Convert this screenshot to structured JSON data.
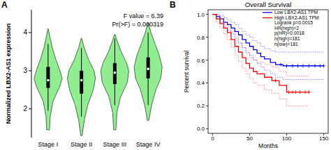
{
  "chart_data": [
    {
      "type": "violin",
      "panel_label": "A",
      "y_label": "Normalized LBX2-AS1 expression",
      "annotations": [
        "F value = 6.39",
        "Pr(>F) = 0.000319"
      ],
      "categories": [
        "Stage I",
        "Stage II",
        "Stage III",
        "Stage IV"
      ],
      "color": "#90ee90",
      "ylim": [
        1.25,
        4.6
      ],
      "yticks": [
        2,
        3,
        4
      ],
      "whisker_low": [
        1.95,
        1.8,
        2.1,
        2.1
      ],
      "q1": [
        2.55,
        2.4,
        2.65,
        2.8
      ],
      "median": [
        2.75,
        2.75,
        2.95,
        3.05
      ],
      "q3": [
        3.1,
        3.0,
        3.2,
        3.35
      ],
      "whisker_high": [
        3.7,
        3.6,
        3.85,
        4.0
      ],
      "density_y": [
        [
          1.45,
          1.8,
          2.2,
          2.6,
          2.8,
          3.0,
          3.3,
          3.6,
          3.9,
          4.1
        ],
        [
          1.3,
          1.7,
          2.1,
          2.5,
          2.8,
          3.0,
          3.3,
          3.6,
          3.85
        ],
        [
          1.45,
          1.9,
          2.3,
          2.7,
          3.0,
          3.2,
          3.5,
          3.8,
          3.95
        ],
        [
          1.7,
          2.1,
          2.5,
          2.8,
          3.1,
          3.4,
          3.7,
          4.0,
          4.25
        ]
      ],
      "density": [
        [
          0.1,
          0.15,
          0.35,
          0.85,
          1.0,
          0.85,
          0.55,
          0.3,
          0.12,
          0.02
        ],
        [
          0.05,
          0.2,
          0.45,
          0.85,
          1.0,
          0.9,
          0.5,
          0.2,
          0.02
        ],
        [
          0.08,
          0.15,
          0.4,
          0.9,
          1.0,
          0.85,
          0.45,
          0.15,
          0.03
        ],
        [
          0.05,
          0.25,
          0.55,
          0.9,
          1.0,
          0.8,
          0.5,
          0.2,
          0.02
        ]
      ]
    },
    {
      "type": "line",
      "panel_label": "B",
      "title": "Overall Survival",
      "x_label": "Months",
      "y_label": "Percent survival",
      "xlim": [
        -6,
        156
      ],
      "ylim": [
        -0.04,
        1.04
      ],
      "xticks": [
        0,
        50,
        100,
        150
      ],
      "yticks": [
        {
          "value": 0,
          "label": "0.0"
        },
        0.2,
        0.4,
        0.6,
        0.8,
        {
          "value": 1,
          "label": "1.0"
        }
      ],
      "legend": "top-right",
      "line_style": "step",
      "annotations": [
        "Logrank p=0.0015",
        "HR(high)=2",
        "p(HR)=0.0018",
        "n(high)=181",
        "n(low)=181"
      ],
      "series": [
        {
          "name": "Low LBX2-AS1 TPM",
          "color": "#0000ff",
          "x": [
            0,
            5,
            10,
            15,
            20,
            25,
            30,
            35,
            40,
            45,
            50,
            55,
            60,
            65,
            70,
            78,
            85,
            95,
            150
          ],
          "values": [
            1,
            0.98,
            0.96,
            0.93,
            0.91,
            0.88,
            0.85,
            0.82,
            0.78,
            0.75,
            0.72,
            0.69,
            0.66,
            0.63,
            0.61,
            0.58,
            0.56,
            0.55,
            0.55
          ],
          "upper": [
            1,
            1,
            0.99,
            0.97,
            0.95,
            0.93,
            0.91,
            0.88,
            0.85,
            0.82,
            0.8,
            0.77,
            0.75,
            0.72,
            0.7,
            0.68,
            0.67,
            0.67,
            0.67
          ],
          "lower": [
            1,
            0.96,
            0.93,
            0.89,
            0.86,
            0.83,
            0.79,
            0.75,
            0.71,
            0.67,
            0.64,
            0.6,
            0.57,
            0.54,
            0.51,
            0.48,
            0.45,
            0.43,
            0.43
          ],
          "censored": [
            92,
            100,
            108,
            115,
            122,
            130,
            138,
            145,
            150
          ]
        },
        {
          "name": "High LBX2-AS1 TPM",
          "color": "#ff0000",
          "x": [
            0,
            5,
            10,
            15,
            20,
            25,
            30,
            35,
            40,
            45,
            50,
            55,
            60,
            70,
            80,
            90,
            100,
            130
          ],
          "values": [
            1,
            0.96,
            0.92,
            0.88,
            0.84,
            0.78,
            0.72,
            0.67,
            0.62,
            0.57,
            0.53,
            0.5,
            0.48,
            0.45,
            0.42,
            0.38,
            0.32,
            0.32
          ],
          "upper": [
            1,
            0.99,
            0.96,
            0.93,
            0.9,
            0.85,
            0.8,
            0.75,
            0.71,
            0.66,
            0.62,
            0.6,
            0.58,
            0.56,
            0.54,
            0.5,
            0.46,
            0.46
          ],
          "lower": [
            1,
            0.93,
            0.88,
            0.83,
            0.78,
            0.71,
            0.64,
            0.59,
            0.53,
            0.48,
            0.44,
            0.4,
            0.38,
            0.34,
            0.31,
            0.26,
            0.2,
            0.2
          ],
          "censored": [
            85,
            103,
            108,
            112,
            118,
            125,
            130
          ]
        }
      ]
    }
  ]
}
